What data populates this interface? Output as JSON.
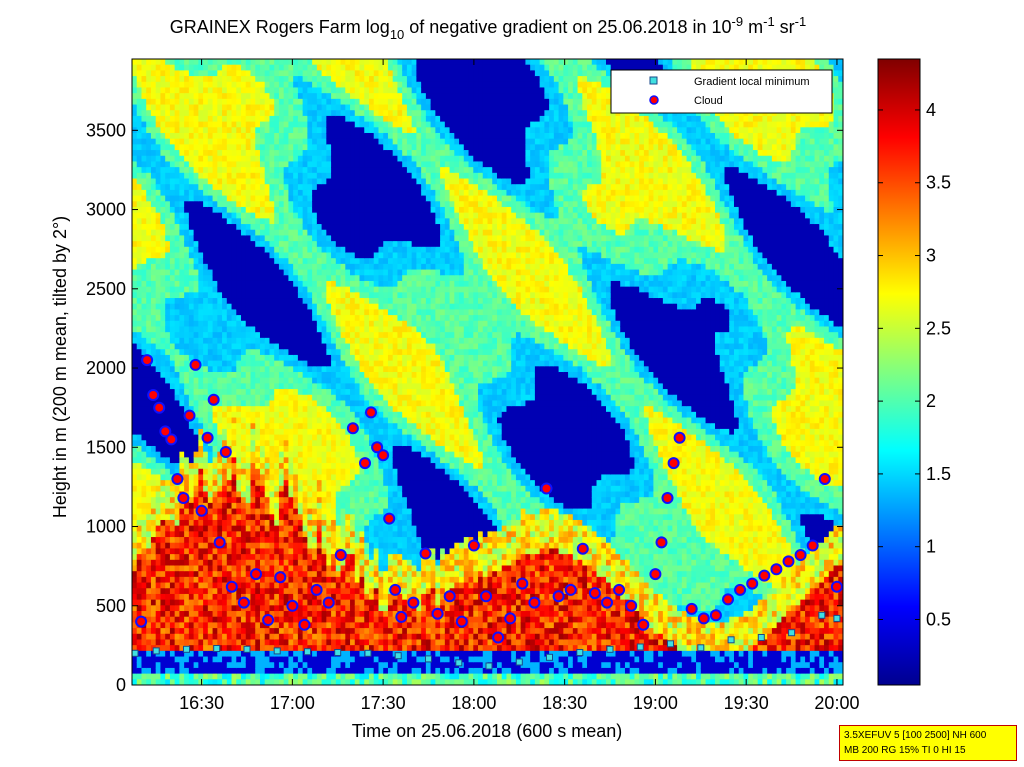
{
  "chart_data": {
    "type": "heatmap",
    "title_prefix": "GRAINEX Rogers Farm log",
    "title_sub": "10",
    "title_mid": " of negative gradient on 25.06.2018 in 10",
    "title_sup1": "-9",
    "title_m": " m",
    "title_sup2": "-1",
    "title_sr": " sr",
    "title_sup3": "-1",
    "xlabel": "Time on 25.06.2018 (600 s mean)",
    "ylabel": "Height in m (200 m mean, tilted by 2°)",
    "x_ticks": [
      "16:30",
      "17:00",
      "17:30",
      "18:00",
      "18:30",
      "19:00",
      "19:30",
      "20:00"
    ],
    "x_tick_minutes": [
      990,
      1020,
      1050,
      1080,
      1110,
      1140,
      1170,
      1200
    ],
    "xlim_minutes": [
      967,
      1202
    ],
    "y_ticks": [
      "0",
      "500",
      "1000",
      "1500",
      "2000",
      "2500",
      "3000",
      "3500"
    ],
    "y_tick_values": [
      0,
      500,
      1000,
      1500,
      2000,
      2500,
      3000,
      3500
    ],
    "ylim": [
      0,
      3950
    ],
    "colorbar": {
      "colormap": "jet",
      "range": [
        0.05,
        4.35
      ],
      "ticks": [
        "0.5",
        "1",
        "1.5",
        "2",
        "2.5",
        "3",
        "3.5",
        "4"
      ],
      "tick_values": [
        0.5,
        1,
        1.5,
        2,
        2.5,
        3,
        3.5,
        4
      ]
    },
    "legend": {
      "position": "top-right",
      "entries": [
        "Gradient local minimum",
        "Cloud"
      ]
    },
    "series": [
      {
        "name": "Gradient local minimum",
        "x_minutes": [
          968,
          975,
          985,
          995,
          1005,
          1015,
          1025,
          1035,
          1045,
          1055,
          1065,
          1075,
          1085,
          1095,
          1105,
          1115,
          1125,
          1135,
          1145,
          1155,
          1165,
          1175,
          1185,
          1195,
          1200
        ],
        "y": [
          200,
          215,
          225,
          230,
          225,
          215,
          210,
          205,
          200,
          185,
          165,
          140,
          120,
          145,
          175,
          205,
          225,
          240,
          260,
          235,
          285,
          300,
          330,
          440,
          420
        ]
      },
      {
        "name": "Cloud",
        "x_minutes": [
          970,
          972,
          974,
          976,
          978,
          980,
          982,
          984,
          986,
          988,
          990,
          992,
          994,
          996,
          998,
          1000,
          1004,
          1008,
          1012,
          1016,
          1020,
          1024,
          1028,
          1032,
          1036,
          1040,
          1044,
          1046,
          1048,
          1050,
          1052,
          1054,
          1056,
          1060,
          1064,
          1068,
          1072,
          1076,
          1080,
          1084,
          1088,
          1092,
          1096,
          1100,
          1104,
          1108,
          1112,
          1116,
          1120,
          1124,
          1128,
          1132,
          1136,
          1140,
          1142,
          1144,
          1146,
          1148,
          1152,
          1156,
          1160,
          1164,
          1168,
          1172,
          1176,
          1180,
          1184,
          1188,
          1192,
          1196,
          1200
        ],
        "y": [
          400,
          2050,
          1830,
          1750,
          1600,
          1550,
          1300,
          1180,
          1700,
          2020,
          1100,
          1560,
          1800,
          900,
          1470,
          620,
          520,
          700,
          410,
          680,
          500,
          380,
          600,
          520,
          820,
          1620,
          1400,
          1720,
          1500,
          1450,
          1050,
          600,
          430,
          520,
          830,
          450,
          560,
          400,
          880,
          560,
          300,
          420,
          640,
          520,
          1240,
          560,
          600,
          860,
          580,
          520,
          600,
          500,
          380,
          700,
          900,
          1180,
          1400,
          1560,
          480,
          420,
          440,
          540,
          600,
          640,
          690,
          730,
          780,
          820,
          880,
          1300,
          620
        ]
      }
    ]
  },
  "info_box": {
    "line1": "3.5XEFUV 5 [100 2500] NH 600",
    "line2": "MB 200 RG 15% TI 0 HI 15"
  },
  "colors": {
    "cloud_fill": "#ff0000",
    "cloud_edge": "#1010ff",
    "gradient_fill": "#40e0e0",
    "info_bg": "#ffff00",
    "info_border": "#c00000"
  }
}
